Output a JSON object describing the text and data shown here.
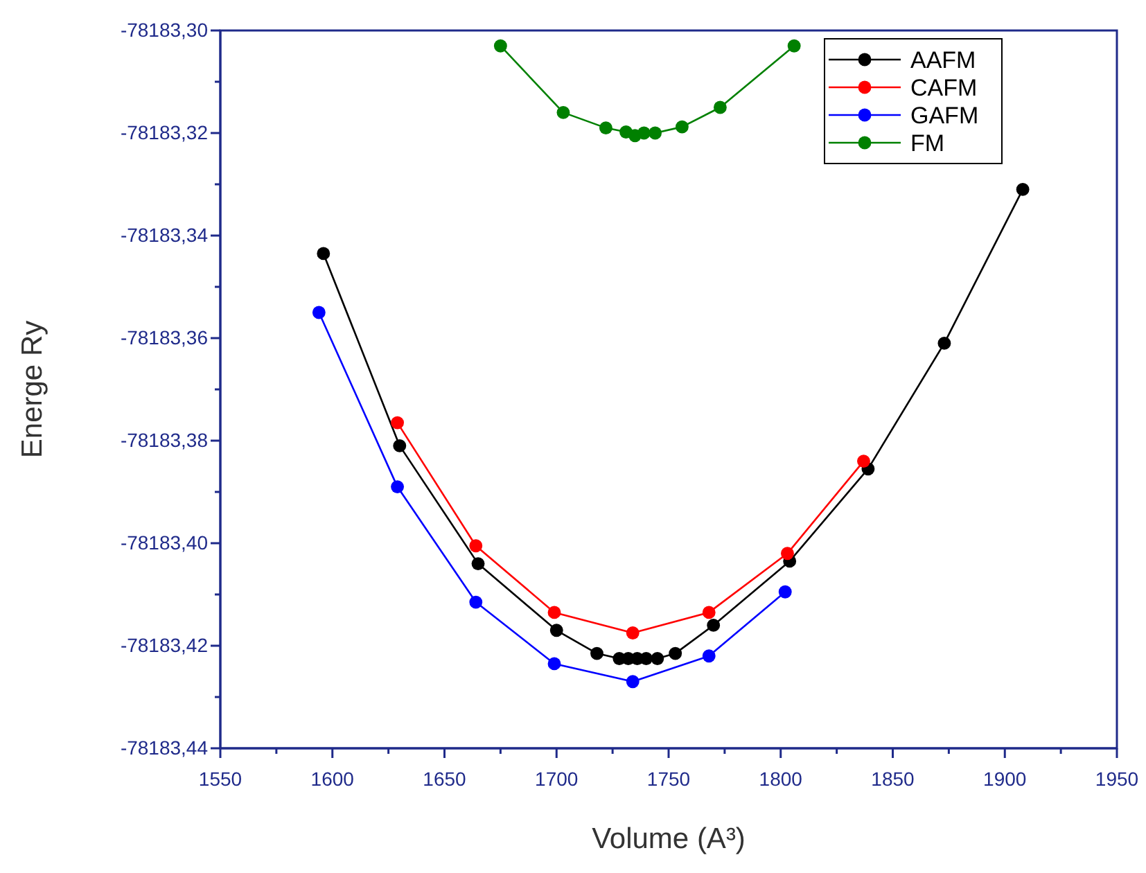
{
  "chart_data": {
    "type": "line",
    "xlabel": "Volume (A³)",
    "ylabel": "Energe Ry",
    "xlim": [
      1550,
      1950
    ],
    "ylim": [
      -78183.44,
      -78183.3
    ],
    "xticks": [
      1550,
      {
        "value": 1575,
        "label": null
      },
      1600,
      {
        "value": 1625,
        "label": null
      },
      1650,
      {
        "value": 1675,
        "label": null
      },
      1700,
      {
        "value": 1725,
        "label": null
      },
      1750,
      {
        "value": 1775,
        "label": null
      },
      1800,
      {
        "value": 1825,
        "label": null
      },
      1850,
      {
        "value": 1875,
        "label": null
      },
      1900,
      {
        "value": 1925,
        "label": null
      },
      1950
    ],
    "yticks": [
      {
        "value": -78183.44,
        "label": "-78183,44"
      },
      {
        "value": -78183.43,
        "label": null
      },
      {
        "value": -78183.42,
        "label": "-78183,42"
      },
      {
        "value": -78183.41,
        "label": null
      },
      {
        "value": -78183.4,
        "label": "-78183,40"
      },
      {
        "value": -78183.39,
        "label": null
      },
      {
        "value": -78183.38,
        "label": "-78183,38"
      },
      {
        "value": -78183.37,
        "label": null
      },
      {
        "value": -78183.36,
        "label": "-78183,36"
      },
      {
        "value": -78183.35,
        "label": null
      },
      {
        "value": -78183.34,
        "label": "-78183,34"
      },
      {
        "value": -78183.33,
        "label": null
      },
      {
        "value": -78183.32,
        "label": "-78183,32"
      },
      {
        "value": -78183.31,
        "label": null
      },
      {
        "value": -78183.3,
        "label": "-78183,30"
      }
    ],
    "grid": false,
    "legend": "top right",
    "marker": "circle",
    "line_style": "solid",
    "series": [
      {
        "name": "AAFM",
        "color": "#000000",
        "x": [
          1596,
          1630,
          1665,
          1700,
          1718,
          1728,
          1732,
          1736,
          1740,
          1745,
          1753,
          1770,
          1804,
          1839,
          1873,
          1908
        ],
        "values": [
          -78183.3435,
          -78183.381,
          -78183.404,
          -78183.417,
          -78183.4215,
          -78183.4225,
          -78183.4225,
          -78183.4225,
          -78183.4225,
          -78183.4225,
          -78183.4215,
          -78183.416,
          -78183.4035,
          -78183.3855,
          -78183.361,
          -78183.331
        ]
      },
      {
        "name": "CAFM",
        "color": "#ff0000",
        "x": [
          1629,
          1664,
          1699,
          1734,
          1768,
          1803,
          1837
        ],
        "values": [
          -78183.3765,
          -78183.4005,
          -78183.4135,
          -78183.4175,
          -78183.4135,
          -78183.402,
          -78183.384
        ]
      },
      {
        "name": "GAFM",
        "color": "#0000ff",
        "x": [
          1594,
          1629,
          1664,
          1699,
          1734,
          1768,
          1802
        ],
        "values": [
          -78183.355,
          -78183.389,
          -78183.4115,
          -78183.4235,
          -78183.427,
          -78183.422,
          -78183.4095
        ]
      },
      {
        "name": "FM",
        "color": "#008000",
        "x": [
          1675,
          1703,
          1722,
          1731,
          1735,
          1739,
          1744,
          1756,
          1773,
          1806
        ],
        "values": [
          -78183.303,
          -78183.316,
          -78183.319,
          -78183.3198,
          -78183.3205,
          -78183.32,
          -78183.32,
          -78183.3188,
          -78183.315,
          -78183.303
        ]
      }
    ]
  }
}
